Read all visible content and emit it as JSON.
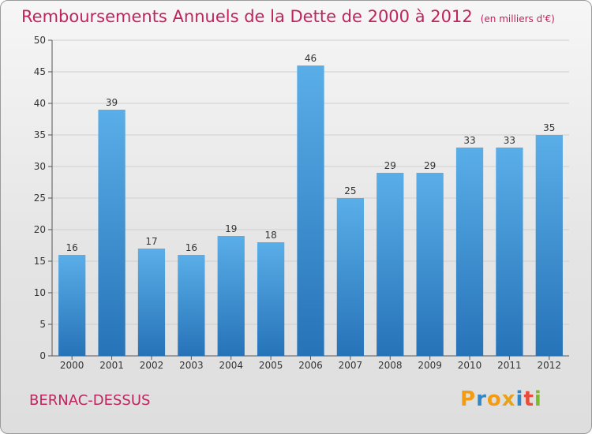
{
  "title": "Remboursements Annuels de la Dette de 2000 à 2012",
  "unit": "(en milliers d'€)",
  "commune": "BERNAC-DESSUS",
  "logo": [
    "P",
    "r",
    "o",
    "x",
    "i",
    "t",
    "i"
  ],
  "colors": {
    "title": "#c0245c",
    "bar_top": "#5aaee8",
    "bar_bottom": "#2673b8",
    "grid": "#cfcfcf",
    "logo": [
      "#f39c12",
      "#2f86c9",
      "#f39c12",
      "#e8a21a",
      "#2f86c9",
      "#e74c3c",
      "#7dbb2c"
    ]
  },
  "chart_data": {
    "type": "bar",
    "categories": [
      "2000",
      "2001",
      "2002",
      "2003",
      "2004",
      "2005",
      "2006",
      "2007",
      "2008",
      "2009",
      "2010",
      "2011",
      "2012"
    ],
    "values": [
      16,
      39,
      17,
      16,
      19,
      18,
      46,
      25,
      29,
      29,
      33,
      33,
      35
    ],
    "ylim": [
      0,
      50
    ],
    "yticks": [
      0,
      5,
      10,
      15,
      20,
      25,
      30,
      35,
      40,
      45,
      50
    ],
    "grid": true
  }
}
